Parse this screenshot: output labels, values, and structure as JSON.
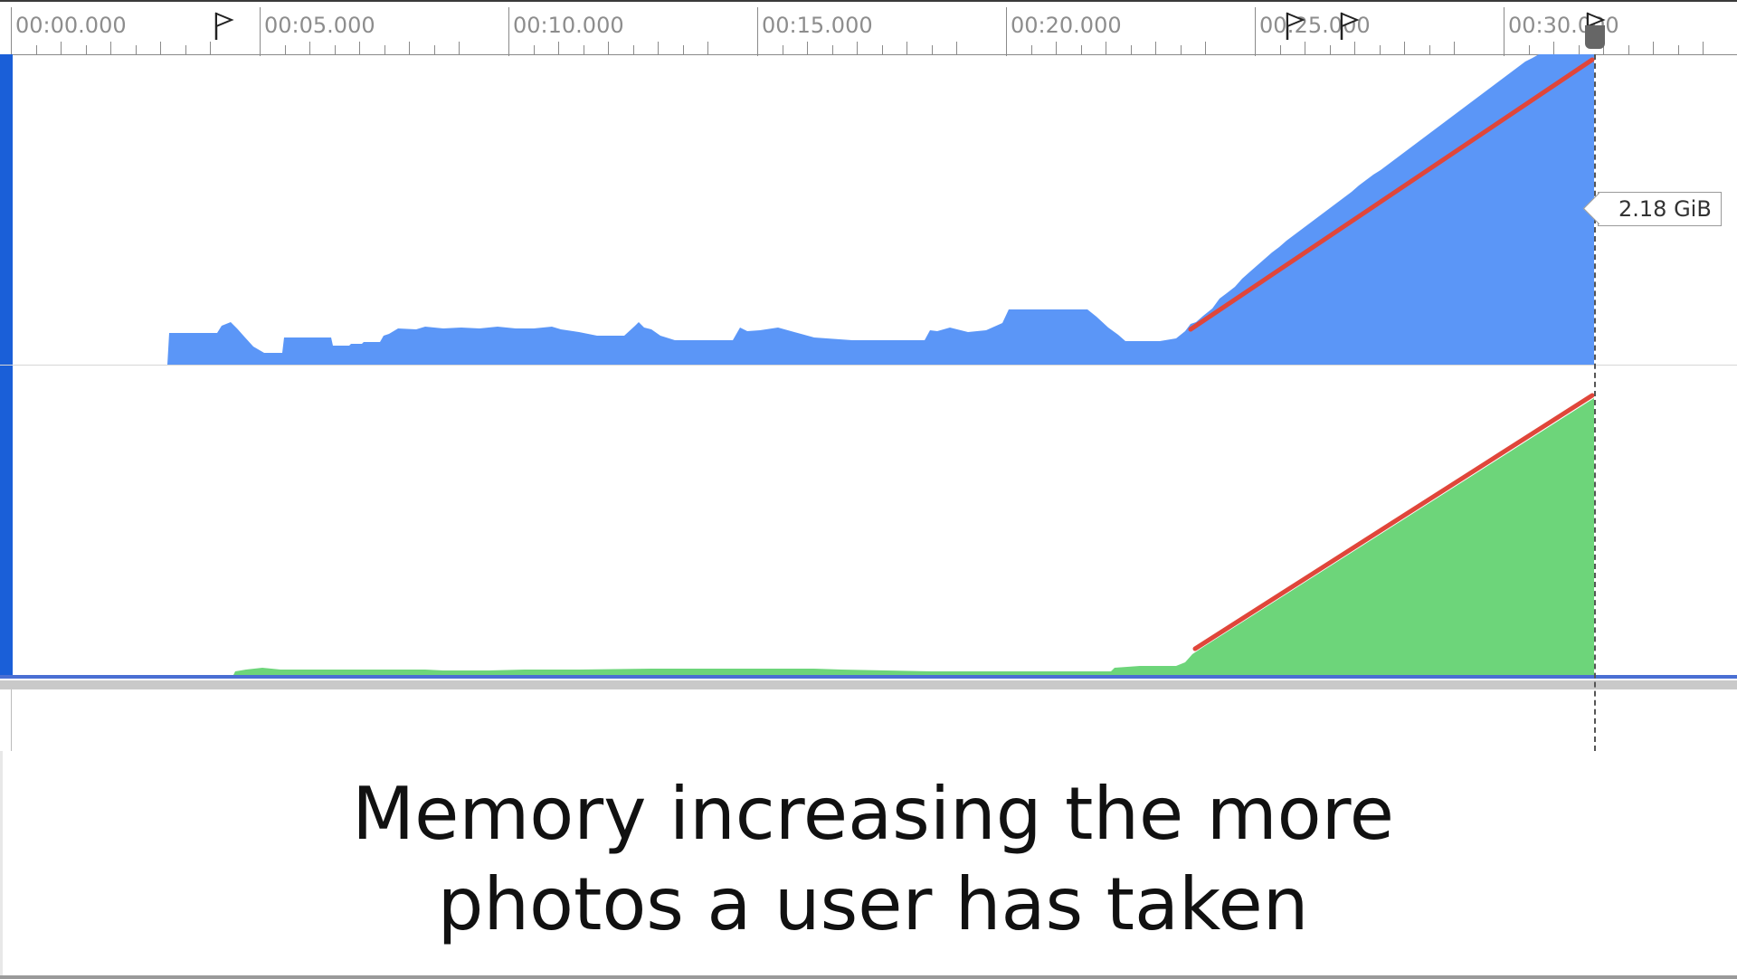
{
  "timeline": {
    "ruler_labels": [
      "00:00.000",
      "00:05.000",
      "00:10.000",
      "00:15.000",
      "00:20.000",
      "00:25.000",
      "00:30.000"
    ],
    "flag_icons": [
      "flag-icon",
      "flag-icon",
      "flag-icon",
      "flag-icon"
    ]
  },
  "memory_track": {
    "value_label": "2.18 GiB",
    "fill_color": "#5b96f7",
    "trend_color": "#e0463a"
  },
  "second_track": {
    "fill_color": "#6dd57a",
    "trend_color": "#e0463a"
  },
  "caption": {
    "line1": "Memory increasing the more",
    "line2": "photos a user has taken"
  },
  "colors": {
    "accent": "#1a5fd8",
    "separator": "#4a6fd3"
  }
}
